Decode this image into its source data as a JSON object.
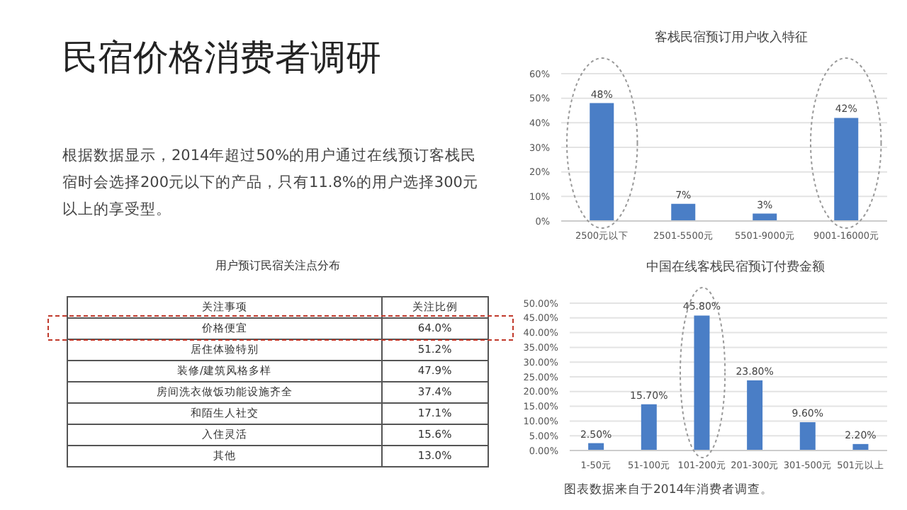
{
  "chart_data": [
    {
      "type": "other",
      "title": "民宿价格消费者调研",
      "annotations": [
        "根据数据显示，2014年超过50%的用户通过在线预订客栈民宿时会选择200元以下的产品，只有11.8%的用户选择300元以上的享受型。"
      ]
    },
    {
      "type": "other",
      "title": "用户预订民宿关注点分布",
      "xlabel": "关注事项",
      "ylabel": "关注比例",
      "categories": [
        "价格便宜",
        "居住体验特别",
        "装修/建筑风格多样",
        "房间洗衣做饭功能设施齐全",
        "和陌生人社交",
        "入住灵活",
        "其他"
      ],
      "value_labels": [
        "64.0%",
        "51.2%",
        "47.9%",
        "37.4%",
        "17.1%",
        "15.6%",
        "13.0%"
      ]
    },
    {
      "type": "bar",
      "title": "客栈民宿预订用户收入特征",
      "categories": [
        "2500元以下",
        "2501-5500元",
        "5501-9000元",
        "9001-16000元"
      ],
      "series": [
        {
          "color": "#4a7ec6",
          "values": [
            48,
            7,
            3,
            42
          ],
          "value_labels": [
            "48%",
            "7%",
            "3%",
            "42%"
          ]
        }
      ],
      "ylim": [
        0,
        60
      ],
      "yticks": [
        {
          "value": 0,
          "label": "0%"
        },
        {
          "value": 10,
          "label": "10%"
        },
        {
          "value": 20,
          "label": "20%"
        },
        {
          "value": 30,
          "label": "30%"
        },
        {
          "value": 40,
          "label": "40%"
        },
        {
          "value": 50,
          "label": "50%"
        },
        {
          "value": 60,
          "label": "60%"
        }
      ],
      "grid": "y"
    },
    {
      "type": "bar",
      "title": "中国在线客栈民宿预订付费金额",
      "categories": [
        "1-50元",
        "51-100元",
        "101-200元",
        "201-300元",
        "301-500元",
        "501元以上"
      ],
      "series": [
        {
          "color": "#4a7ec6",
          "values": [
            2.5,
            15.7,
            45.8,
            23.8,
            9.6,
            2.2
          ],
          "value_labels": [
            "2.50%",
            "15.70%",
            "45.80%",
            "23.80%",
            "9.60%",
            "2.20%"
          ]
        }
      ],
      "ylim": [
        0,
        50
      ],
      "yticks": [
        {
          "value": 0,
          "label": "0.00%"
        },
        {
          "value": 5,
          "label": "5.00%"
        },
        {
          "value": 10,
          "label": "10.00%"
        },
        {
          "value": 15,
          "label": "15.00%"
        },
        {
          "value": 20,
          "label": "20.00%"
        },
        {
          "value": 25,
          "label": "25.00%"
        },
        {
          "value": 30,
          "label": "30.00%"
        },
        {
          "value": 35,
          "label": "35.00%"
        },
        {
          "value": 40,
          "label": "40.00%"
        },
        {
          "value": 45,
          "label": "45.00%"
        },
        {
          "value": 50,
          "label": "50.00%"
        }
      ],
      "grid": "y",
      "annotations": [
        "图表数据来自于2014年消费者调查。"
      ]
    }
  ]
}
